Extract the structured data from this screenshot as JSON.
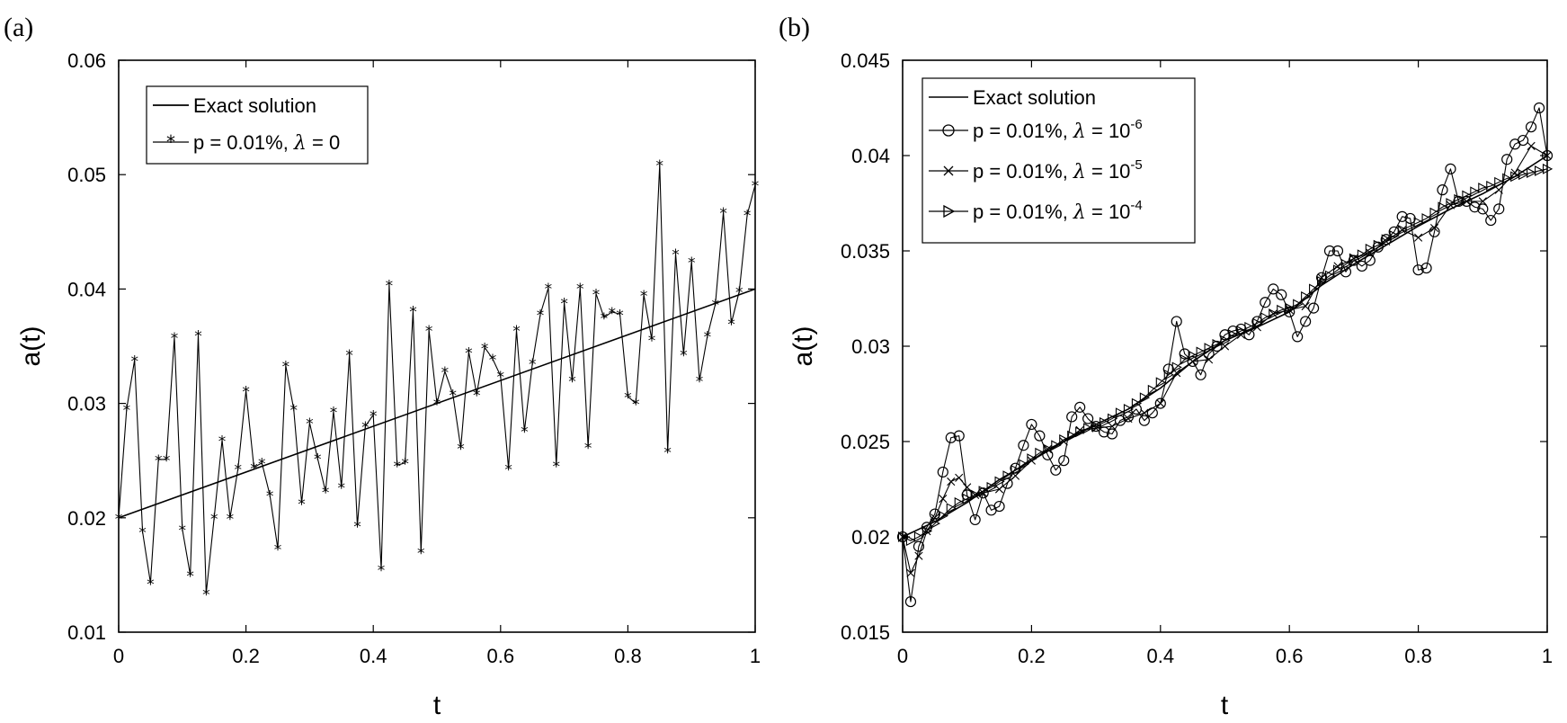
{
  "chart_data": [
    {
      "panel_label": "(a)",
      "type": "line",
      "title": "",
      "xlabel": "t",
      "ylabel": "a(t)",
      "xlim": [
        0,
        1
      ],
      "ylim": [
        0.01,
        0.06
      ],
      "xticks": [
        0,
        0.2,
        0.4,
        0.6,
        0.8,
        1
      ],
      "xtick_labels": [
        "0",
        "0.2",
        "0.4",
        "0.6",
        "0.8",
        "1"
      ],
      "yticks": [
        0.01,
        0.02,
        0.03,
        0.04,
        0.05,
        0.06
      ],
      "ytick_labels": [
        "0.01",
        "0.02",
        "0.03",
        "0.04",
        "0.05",
        "0.06"
      ],
      "grid": false,
      "legend_position": "top-left",
      "legend": [
        {
          "pre": "Exact solution",
          "lambda": "",
          "post": "",
          "exp": "",
          "marker": "none"
        },
        {
          "pre": "p = 0.01%, ",
          "lambda": "λ",
          "post": " = 0",
          "exp": "",
          "marker": "star"
        }
      ],
      "series": [
        {
          "name": "Exact solution",
          "marker": "none",
          "x": [
            0,
            1
          ],
          "y": [
            0.02,
            0.04
          ]
        },
        {
          "name": "p = 0.01%, λ = 0",
          "marker": "star",
          "x": [
            0,
            0.0125,
            0.025,
            0.0375,
            0.05,
            0.0625,
            0.075,
            0.0875,
            0.1,
            0.1125,
            0.125,
            0.1375,
            0.15,
            0.1625,
            0.175,
            0.1875,
            0.2,
            0.2125,
            0.225,
            0.2375,
            0.25,
            0.2625,
            0.275,
            0.2875,
            0.3,
            0.3125,
            0.325,
            0.3375,
            0.35,
            0.3625,
            0.375,
            0.3875,
            0.4,
            0.4125,
            0.425,
            0.4375,
            0.45,
            0.4625,
            0.475,
            0.4875,
            0.5,
            0.5125,
            0.525,
            0.5375,
            0.55,
            0.5625,
            0.575,
            0.5875,
            0.6,
            0.6125,
            0.625,
            0.6375,
            0.65,
            0.6625,
            0.675,
            0.6875,
            0.7,
            0.7125,
            0.725,
            0.7375,
            0.75,
            0.7625,
            0.775,
            0.7875,
            0.8,
            0.8125,
            0.825,
            0.8375,
            0.85,
            0.8625,
            0.875,
            0.8875,
            0.9,
            0.9125,
            0.925,
            0.9375,
            0.95,
            0.9625,
            0.975,
            0.9875,
            1
          ],
          "y": [
            0.02,
            0.0295,
            0.0338,
            0.0188,
            0.0143,
            0.0251,
            0.0251,
            0.0358,
            0.019,
            0.015,
            0.036,
            0.0134,
            0.02,
            0.0268,
            0.02,
            0.0243,
            0.0311,
            0.0244,
            0.0248,
            0.022,
            0.0173,
            0.0333,
            0.0295,
            0.0213,
            0.0283,
            0.0252,
            0.0223,
            0.0293,
            0.0227,
            0.0343,
            0.0193,
            0.028,
            0.029,
            0.0155,
            0.0404,
            0.0246,
            0.0248,
            0.0381,
            0.017,
            0.0364,
            0.03,
            0.0328,
            0.0308,
            0.0261,
            0.0345,
            0.0308,
            0.0349,
            0.0339,
            0.0324,
            0.0243,
            0.0364,
            0.0276,
            0.0335,
            0.0378,
            0.0401,
            0.0246,
            0.0388,
            0.032,
            0.0401,
            0.0262,
            0.0396,
            0.0375,
            0.038,
            0.0378,
            0.0306,
            0.03,
            0.0395,
            0.0356,
            0.0509,
            0.0258,
            0.0431,
            0.0343,
            0.0424,
            0.032,
            0.0359,
            0.0387,
            0.0467,
            0.037,
            0.0398,
            0.0465,
            0.0491
          ]
        }
      ]
    },
    {
      "panel_label": "(b)",
      "type": "line",
      "title": "",
      "xlabel": "t",
      "ylabel": "a(t)",
      "xlim": [
        0,
        1
      ],
      "ylim": [
        0.015,
        0.045
      ],
      "xticks": [
        0,
        0.2,
        0.4,
        0.6,
        0.8,
        1
      ],
      "xtick_labels": [
        "0",
        "0.2",
        "0.4",
        "0.6",
        "0.8",
        "1"
      ],
      "yticks": [
        0.015,
        0.02,
        0.025,
        0.03,
        0.035,
        0.04,
        0.045
      ],
      "ytick_labels": [
        "0.015",
        "0.02",
        "0.025",
        "0.03",
        "0.035",
        "0.04",
        "0.045"
      ],
      "grid": false,
      "legend_position": "top-left",
      "legend": [
        {
          "pre": "Exact solution",
          "lambda": "",
          "post": "",
          "exp": "",
          "marker": "none"
        },
        {
          "pre": "p = 0.01%, ",
          "lambda": "λ",
          "post": " = 10",
          "exp": "-6",
          "marker": "circle"
        },
        {
          "pre": "p = 0.01%, ",
          "lambda": "λ",
          "post": " = 10",
          "exp": "-5",
          "marker": "x"
        },
        {
          "pre": "p = 0.01%, ",
          "lambda": "λ",
          "post": " = 10",
          "exp": "-4",
          "marker": "triangle-right"
        }
      ],
      "series": [
        {
          "name": "Exact solution",
          "marker": "none",
          "x": [
            0,
            0.05,
            0.1,
            0.15,
            0.2,
            0.25,
            0.3,
            0.35,
            0.4,
            0.45,
            0.5,
            0.55,
            0.6,
            0.65,
            0.7,
            0.75,
            0.8,
            0.85,
            0.9,
            0.95,
            1
          ],
          "y": [
            0.02,
            0.0208,
            0.0218,
            0.023,
            0.024,
            0.025,
            0.0259,
            0.0267,
            0.0278,
            0.0292,
            0.0303,
            0.031,
            0.0318,
            0.0332,
            0.0343,
            0.0353,
            0.0363,
            0.0372,
            0.038,
            0.0389,
            0.04
          ]
        },
        {
          "name": "p = 0.01%, λ = 10^-6",
          "marker": "circle",
          "x": [
            0,
            0.0125,
            0.025,
            0.0375,
            0.05,
            0.0625,
            0.075,
            0.0875,
            0.1,
            0.1125,
            0.125,
            0.1375,
            0.15,
            0.1625,
            0.175,
            0.1875,
            0.2,
            0.2125,
            0.225,
            0.2375,
            0.25,
            0.2625,
            0.275,
            0.2875,
            0.3,
            0.3125,
            0.325,
            0.3375,
            0.35,
            0.3625,
            0.375,
            0.3875,
            0.4,
            0.4125,
            0.425,
            0.4375,
            0.45,
            0.4625,
            0.475,
            0.4875,
            0.5,
            0.5125,
            0.525,
            0.5375,
            0.55,
            0.5625,
            0.575,
            0.5875,
            0.6,
            0.6125,
            0.625,
            0.6375,
            0.65,
            0.6625,
            0.675,
            0.6875,
            0.7,
            0.7125,
            0.725,
            0.7375,
            0.75,
            0.7625,
            0.775,
            0.7875,
            0.8,
            0.8125,
            0.825,
            0.8375,
            0.85,
            0.8625,
            0.875,
            0.8875,
            0.9,
            0.9125,
            0.925,
            0.9375,
            0.95,
            0.9625,
            0.975,
            0.9875,
            1
          ],
          "y": [
            0.02,
            0.0166,
            0.0195,
            0.0205,
            0.0212,
            0.0234,
            0.0252,
            0.0253,
            0.0222,
            0.0209,
            0.0223,
            0.0214,
            0.0216,
            0.0228,
            0.0236,
            0.0248,
            0.0259,
            0.0253,
            0.0243,
            0.0235,
            0.024,
            0.0263,
            0.0268,
            0.0262,
            0.0258,
            0.0255,
            0.0254,
            0.0261,
            0.0263,
            0.0267,
            0.0261,
            0.0265,
            0.027,
            0.0288,
            0.0313,
            0.0296,
            0.0292,
            0.0285,
            0.0296,
            0.03,
            0.0306,
            0.0308,
            0.0309,
            0.0306,
            0.0313,
            0.0323,
            0.033,
            0.0327,
            0.0318,
            0.0305,
            0.0313,
            0.032,
            0.0336,
            0.035,
            0.035,
            0.0339,
            0.0345,
            0.0342,
            0.0345,
            0.0352,
            0.0356,
            0.036,
            0.0368,
            0.0367,
            0.034,
            0.0341,
            0.036,
            0.0382,
            0.0393,
            0.0376,
            0.0376,
            0.0373,
            0.0372,
            0.0366,
            0.0372,
            0.0398,
            0.0406,
            0.0408,
            0.0415,
            0.0425,
            0.04
          ]
        },
        {
          "name": "p = 0.01%, λ = 10^-5",
          "marker": "x",
          "x": [
            0,
            0.0125,
            0.025,
            0.0375,
            0.05,
            0.0625,
            0.075,
            0.0875,
            0.1,
            0.1125,
            0.125,
            0.15,
            0.175,
            0.2,
            0.225,
            0.25,
            0.275,
            0.3,
            0.325,
            0.35,
            0.375,
            0.4,
            0.425,
            0.45,
            0.475,
            0.5,
            0.525,
            0.55,
            0.575,
            0.6,
            0.625,
            0.65,
            0.675,
            0.7,
            0.725,
            0.75,
            0.775,
            0.8,
            0.825,
            0.85,
            0.875,
            0.9,
            0.925,
            0.95,
            0.975,
            1
          ],
          "y": [
            0.02,
            0.0181,
            0.019,
            0.0203,
            0.021,
            0.022,
            0.0229,
            0.0231,
            0.0226,
            0.0222,
            0.0223,
            0.0225,
            0.0232,
            0.024,
            0.0246,
            0.025,
            0.0256,
            0.0257,
            0.0258,
            0.0262,
            0.0265,
            0.027,
            0.0286,
            0.0292,
            0.0293,
            0.03,
            0.0306,
            0.031,
            0.0317,
            0.0319,
            0.0321,
            0.0336,
            0.0342,
            0.0346,
            0.0349,
            0.0355,
            0.0361,
            0.0357,
            0.0362,
            0.0374,
            0.0376,
            0.0376,
            0.0382,
            0.0391,
            0.0405,
            0.04
          ]
        },
        {
          "name": "p = 0.01%, λ = 10^-4",
          "marker": "triangle-right",
          "x": [
            0,
            0.0125,
            0.025,
            0.0375,
            0.05,
            0.0625,
            0.075,
            0.0875,
            0.1,
            0.1125,
            0.125,
            0.1375,
            0.15,
            0.1625,
            0.175,
            0.1875,
            0.2,
            0.2125,
            0.225,
            0.2375,
            0.25,
            0.2625,
            0.275,
            0.2875,
            0.3,
            0.3125,
            0.325,
            0.3375,
            0.35,
            0.3625,
            0.375,
            0.3875,
            0.4,
            0.4125,
            0.425,
            0.4375,
            0.45,
            0.4625,
            0.475,
            0.4875,
            0.5,
            0.5125,
            0.525,
            0.5375,
            0.55,
            0.5625,
            0.575,
            0.5875,
            0.6,
            0.6125,
            0.625,
            0.6375,
            0.65,
            0.6625,
            0.675,
            0.6875,
            0.7,
            0.7125,
            0.725,
            0.7375,
            0.75,
            0.7625,
            0.775,
            0.7875,
            0.8,
            0.8125,
            0.825,
            0.8375,
            0.85,
            0.8625,
            0.875,
            0.8875,
            0.9,
            0.9125,
            0.925,
            0.9375,
            0.95,
            0.9625,
            0.975,
            0.9875,
            1
          ],
          "y": [
            0.02,
            0.0198,
            0.02,
            0.0203,
            0.0207,
            0.0211,
            0.0215,
            0.0218,
            0.022,
            0.0222,
            0.0224,
            0.0226,
            0.0229,
            0.0232,
            0.0235,
            0.0238,
            0.0241,
            0.0244,
            0.0246,
            0.0248,
            0.0251,
            0.0253,
            0.0255,
            0.0257,
            0.0258,
            0.026,
            0.0262,
            0.0265,
            0.0267,
            0.027,
            0.0273,
            0.0277,
            0.0281,
            0.0285,
            0.0289,
            0.0293,
            0.0295,
            0.0297,
            0.0299,
            0.0301,
            0.0303,
            0.0306,
            0.0308,
            0.031,
            0.0312,
            0.0315,
            0.0317,
            0.0319,
            0.032,
            0.0322,
            0.0326,
            0.033,
            0.0334,
            0.0337,
            0.034,
            0.0343,
            0.0346,
            0.0348,
            0.0351,
            0.0353,
            0.0356,
            0.0358,
            0.0361,
            0.0363,
            0.0365,
            0.0367,
            0.037,
            0.0373,
            0.0375,
            0.0377,
            0.0379,
            0.0381,
            0.0383,
            0.0384,
            0.0386,
            0.0388,
            0.0389,
            0.039,
            0.0391,
            0.0392,
            0.0393
          ]
        }
      ]
    }
  ]
}
